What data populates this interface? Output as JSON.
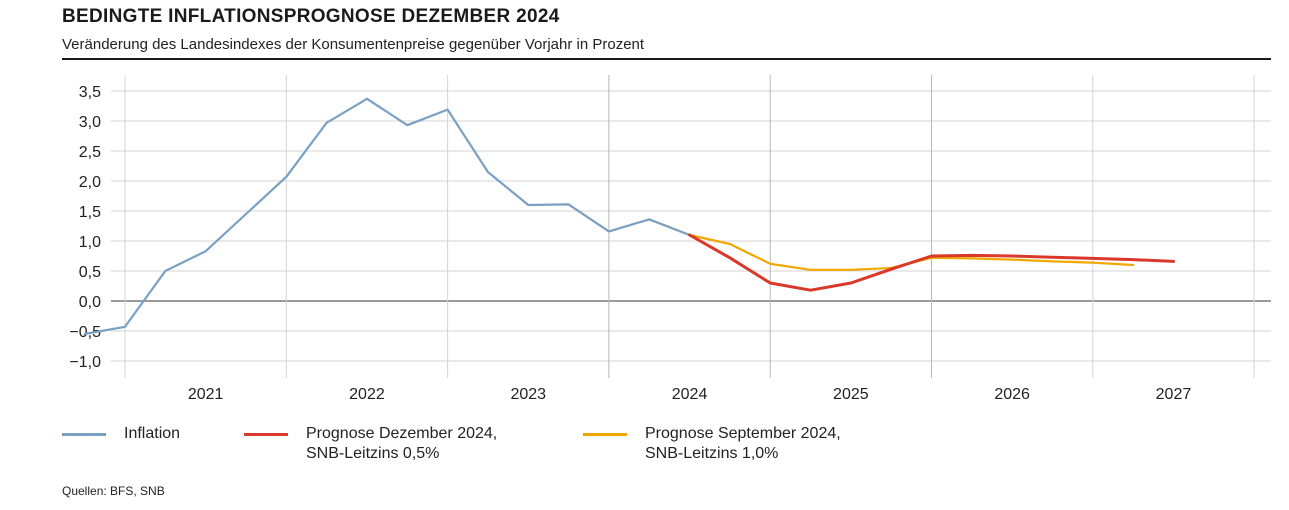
{
  "header": {
    "title": "BEDINGTE INFLATIONSPROGNOSE DEZEMBER 2024",
    "subtitle": "Veränderung des Landesindexes der Konsumentenpreise gegenüber Vorjahr in Prozent"
  },
  "legend": [
    {
      "line1": "Inflation",
      "line2": ""
    },
    {
      "line1": "Prognose Dezember 2024,",
      "line2": "SNB-Leitzins 0,5%"
    },
    {
      "line1": "Prognose September 2024,",
      "line2": "SNB-Leitzins 1,0%"
    }
  ],
  "source": "Quellen: BFS, SNB",
  "colors": {
    "inflation": "#7aa0c4",
    "prognose_dez": "#d9382a",
    "prognose_sep": "#f0a800",
    "grid": "#d4d4d4",
    "zero": "#9a9a9a"
  },
  "chart_data": {
    "type": "line",
    "x_unit": "quarter",
    "xlim": [
      "2020Q4",
      "2027Q4"
    ],
    "ylim": [
      -1.0,
      3.5
    ],
    "y_ticks": [
      "3,5",
      "3,0",
      "2,5",
      "2,0",
      "1,5",
      "1,0",
      "0,5",
      "0,0",
      "−0,5",
      "−1,0"
    ],
    "y_tick_values": [
      3.5,
      3.0,
      2.5,
      2.0,
      1.5,
      1.0,
      0.5,
      0.0,
      -0.5,
      -1.0
    ],
    "x_tick_labels": [
      "2021",
      "2022",
      "2023",
      "2024",
      "2025",
      "2026",
      "2027"
    ],
    "grid": true,
    "series": [
      {
        "name": "Inflation",
        "color": "#7aa0c4",
        "points": [
          [
            "2020Q4",
            -0.55
          ],
          [
            "2021Q1",
            -0.43
          ],
          [
            "2021Q2",
            0.5
          ],
          [
            "2021Q3",
            0.83
          ],
          [
            "2021Q4",
            1.45
          ],
          [
            "2022Q1",
            2.07
          ],
          [
            "2022Q2",
            2.97
          ],
          [
            "2022Q3",
            3.37
          ],
          [
            "2022Q4",
            2.93
          ],
          [
            "2023Q1",
            3.19
          ],
          [
            "2023Q2",
            2.15
          ],
          [
            "2023Q3",
            1.6
          ],
          [
            "2023Q4",
            1.61
          ],
          [
            "2024Q1",
            1.16
          ],
          [
            "2024Q2",
            1.36
          ],
          [
            "2024Q3",
            1.1
          ]
        ]
      },
      {
        "name": "Prognose Dezember 2024, SNB-Leitzins 0,5%",
        "color": "#d9382a",
        "points": [
          [
            "2024Q3",
            1.1
          ],
          [
            "2024Q4",
            0.72
          ],
          [
            "2025Q1",
            0.3
          ],
          [
            "2025Q2",
            0.18
          ],
          [
            "2025Q3",
            0.3
          ],
          [
            "2025Q4",
            0.53
          ],
          [
            "2026Q1",
            0.75
          ],
          [
            "2026Q2",
            0.76
          ],
          [
            "2026Q3",
            0.75
          ],
          [
            "2026Q4",
            0.73
          ],
          [
            "2027Q1",
            0.71
          ],
          [
            "2027Q2",
            0.69
          ],
          [
            "2027Q3",
            0.66
          ]
        ]
      },
      {
        "name": "Prognose September 2024, SNB-Leitzins 1,0%",
        "color": "#f0a800",
        "points": [
          [
            "2024Q2",
            1.36
          ],
          [
            "2024Q3",
            1.1
          ],
          [
            "2024Q4",
            0.95
          ],
          [
            "2025Q1",
            0.62
          ],
          [
            "2025Q2",
            0.52
          ],
          [
            "2025Q3",
            0.52
          ],
          [
            "2025Q4",
            0.55
          ],
          [
            "2026Q1",
            0.72
          ],
          [
            "2026Q2",
            0.71
          ],
          [
            "2026Q3",
            0.69
          ],
          [
            "2026Q4",
            0.66
          ],
          [
            "2027Q1",
            0.64
          ],
          [
            "2027Q2",
            0.6
          ]
        ]
      }
    ]
  }
}
